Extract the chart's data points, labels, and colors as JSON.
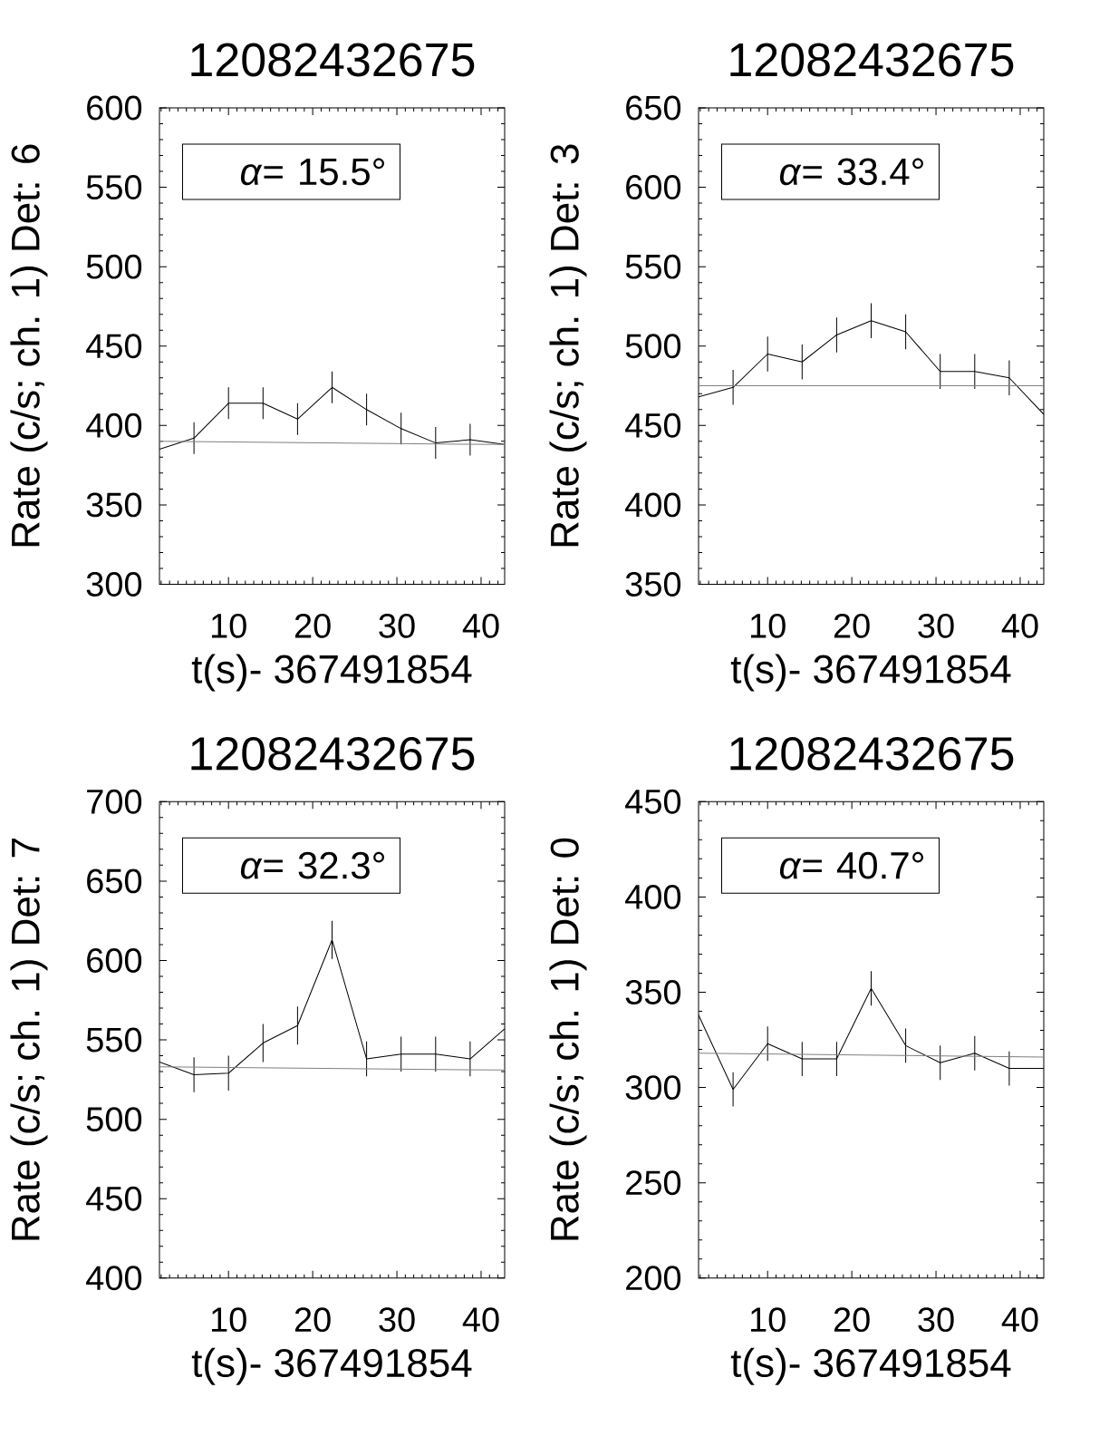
{
  "chart_data": [
    {
      "type": "line",
      "title": "12082432675",
      "xlabel": "t(s)- 367491854",
      "ylabel": "Rate (c/s; ch. 1) Det: 6",
      "annotations": [
        "*α*= 15.5°"
      ],
      "xlim": [
        1.8,
        42.8
      ],
      "ylim": [
        300,
        600
      ],
      "xticks": [
        10,
        20,
        30,
        40
      ],
      "yticks": [
        300,
        350,
        400,
        450,
        500,
        550,
        600
      ],
      "series": [
        {
          "color": "#000000",
          "x": [
            1.8,
            5.9,
            10.0,
            14.1,
            18.2,
            22.3,
            26.4,
            30.5,
            34.6,
            38.7,
            42.8
          ],
          "values": [
            385,
            392,
            414,
            414,
            404,
            424,
            410,
            398,
            389,
            391,
            388
          ],
          "errors": [
            null,
            10,
            10,
            10,
            10,
            10,
            10,
            10,
            10,
            10,
            null
          ]
        },
        {
          "color": "#808080",
          "x": [
            1.8,
            42.8
          ],
          "values": [
            390,
            388
          ]
        }
      ]
    },
    {
      "type": "line",
      "title": "12082432675",
      "xlabel": "t(s)- 367491854",
      "ylabel": "Rate (c/s; ch. 1) Det: 3",
      "annotations": [
        "*α*= 33.4°"
      ],
      "xlim": [
        1.8,
        42.8
      ],
      "ylim": [
        350,
        650
      ],
      "xticks": [
        10,
        20,
        30,
        40
      ],
      "yticks": [
        350,
        400,
        450,
        500,
        550,
        600,
        650
      ],
      "series": [
        {
          "color": "#000000",
          "x": [
            1.8,
            5.9,
            10.0,
            14.1,
            18.2,
            22.3,
            26.4,
            30.5,
            34.6,
            38.7,
            42.8
          ],
          "values": [
            468,
            474,
            495,
            490,
            507,
            516,
            509,
            484,
            484,
            480,
            457
          ],
          "errors": [
            null,
            11,
            11,
            11,
            11,
            11,
            11,
            11,
            11,
            11,
            null
          ]
        },
        {
          "color": "#808080",
          "x": [
            1.8,
            42.8
          ],
          "values": [
            475,
            475
          ]
        }
      ]
    },
    {
      "type": "line",
      "title": "12082432675",
      "xlabel": "t(s)- 367491854",
      "ylabel": "Rate (c/s; ch. 1) Det: 7",
      "annotations": [
        "*α*= 32.3°"
      ],
      "xlim": [
        1.8,
        42.8
      ],
      "ylim": [
        400,
        700
      ],
      "xticks": [
        10,
        20,
        30,
        40
      ],
      "yticks": [
        400,
        450,
        500,
        550,
        600,
        650,
        700
      ],
      "series": [
        {
          "color": "#000000",
          "x": [
            1.8,
            5.9,
            10.0,
            14.1,
            18.2,
            22.3,
            26.4,
            30.5,
            34.6,
            38.7,
            42.8
          ],
          "values": [
            536,
            528,
            529,
            548,
            559,
            613,
            538,
            541,
            541,
            538,
            557
          ],
          "errors": [
            null,
            11,
            11,
            12,
            12,
            12,
            11,
            11,
            11,
            11,
            null
          ]
        },
        {
          "color": "#808080",
          "x": [
            1.8,
            42.8
          ],
          "values": [
            533,
            531
          ]
        }
      ]
    },
    {
      "type": "line",
      "title": "12082432675",
      "xlabel": "t(s)- 367491854",
      "ylabel": "Rate (c/s; ch. 1) Det: 0",
      "annotations": [
        "*α*= 40.7°"
      ],
      "xlim": [
        1.8,
        42.8
      ],
      "ylim": [
        200,
        450
      ],
      "xticks": [
        10,
        20,
        30,
        40
      ],
      "yticks": [
        200,
        250,
        300,
        350,
        400,
        450
      ],
      "series": [
        {
          "color": "#000000",
          "x": [
            1.8,
            5.9,
            10.0,
            14.1,
            18.2,
            22.3,
            26.4,
            30.5,
            34.6,
            38.7,
            42.8
          ],
          "values": [
            338,
            299,
            323,
            315,
            315,
            352,
            322,
            313,
            318,
            310,
            310
          ],
          "errors": [
            null,
            9,
            9,
            9,
            9,
            9,
            9,
            9,
            9,
            9,
            null
          ]
        },
        {
          "color": "#808080",
          "x": [
            1.8,
            42.8
          ],
          "values": [
            318,
            316
          ]
        }
      ]
    }
  ]
}
